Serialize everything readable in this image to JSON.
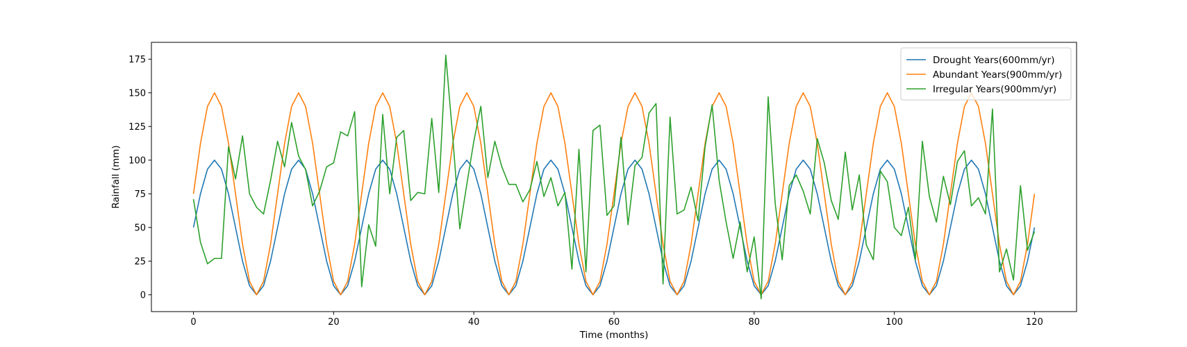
{
  "chart_data": {
    "type": "line",
    "title": "",
    "xlabel": "Time (months)",
    "ylabel": "Rainfall (mm)",
    "xlim": [
      -6,
      126
    ],
    "ylim": [
      -12.5,
      187.5
    ],
    "xticks": [
      0,
      20,
      40,
      60,
      80,
      100,
      120
    ],
    "yticks": [
      0,
      25,
      50,
      75,
      100,
      125,
      150,
      175
    ],
    "grid": false,
    "legend_position": "top-right",
    "x": [
      0,
      1,
      2,
      3,
      4,
      5,
      6,
      7,
      8,
      9,
      10,
      11,
      12,
      13,
      14,
      15,
      16,
      17,
      18,
      19,
      20,
      21,
      22,
      23,
      24,
      25,
      26,
      27,
      28,
      29,
      30,
      31,
      32,
      33,
      34,
      35,
      36,
      37,
      38,
      39,
      40,
      41,
      42,
      43,
      44,
      45,
      46,
      47,
      48,
      49,
      50,
      51,
      52,
      53,
      54,
      55,
      56,
      57,
      58,
      59,
      60,
      61,
      62,
      63,
      64,
      65,
      66,
      67,
      68,
      69,
      70,
      71,
      72,
      73,
      74,
      75,
      76,
      77,
      78,
      79,
      80,
      81,
      82,
      83,
      84,
      85,
      86,
      87,
      88,
      89,
      90,
      91,
      92,
      93,
      94,
      95,
      96,
      97,
      98,
      99,
      100,
      101,
      102,
      103,
      104,
      105,
      106,
      107,
      108,
      109,
      110,
      111,
      112,
      113,
      114,
      115,
      116,
      117,
      118,
      119,
      120
    ],
    "series": [
      {
        "name": "Drought Years(600mm/yr)",
        "color": "#1f77b4",
        "values": [
          50,
          75,
          93.3,
          100,
          93.3,
          75,
          50,
          25,
          6.7,
          0,
          6.7,
          25,
          50,
          75,
          93.3,
          100,
          93.3,
          75,
          50,
          25,
          6.7,
          0,
          6.7,
          25,
          50,
          75,
          93.3,
          100,
          93.3,
          75,
          50,
          25,
          6.7,
          0,
          6.7,
          25,
          50,
          75,
          93.3,
          100,
          93.3,
          75,
          50,
          25,
          6.7,
          0,
          6.7,
          25,
          50,
          75,
          93.3,
          100,
          93.3,
          75,
          50,
          25,
          6.7,
          0,
          6.7,
          25,
          50,
          75,
          93.3,
          100,
          93.3,
          75,
          50,
          25,
          6.7,
          0,
          6.7,
          25,
          50,
          75,
          93.3,
          100,
          93.3,
          75,
          50,
          25,
          6.7,
          0,
          6.7,
          25,
          50,
          75,
          93.3,
          100,
          93.3,
          75,
          50,
          25,
          6.7,
          0,
          6.7,
          25,
          50,
          75,
          93.3,
          100,
          93.3,
          75,
          50,
          25,
          6.7,
          0,
          6.7,
          25,
          50,
          75,
          93.3,
          100,
          93.3,
          75,
          50,
          25,
          6.7,
          0,
          6.7,
          25,
          50
        ]
      },
      {
        "name": "Abundant Years(900mm/yr)",
        "color": "#ff7f0e",
        "values": [
          75,
          112.5,
          139.9,
          150,
          139.9,
          112.5,
          75,
          37.5,
          10,
          0,
          10,
          37.5,
          75,
          112.5,
          139.9,
          150,
          139.9,
          112.5,
          75,
          37.5,
          10,
          0,
          10,
          37.5,
          75,
          112.5,
          139.9,
          150,
          139.9,
          112.5,
          75,
          37.5,
          10,
          0,
          10,
          37.5,
          75,
          112.5,
          139.9,
          150,
          139.9,
          112.5,
          75,
          37.5,
          10,
          0,
          10,
          37.5,
          75,
          112.5,
          139.9,
          150,
          139.9,
          112.5,
          75,
          37.5,
          10,
          0,
          10,
          37.5,
          75,
          112.5,
          139.9,
          150,
          139.9,
          112.5,
          75,
          37.5,
          10,
          0,
          10,
          37.5,
          75,
          112.5,
          139.9,
          150,
          139.9,
          112.5,
          75,
          37.5,
          10,
          0,
          10,
          37.5,
          75,
          112.5,
          139.9,
          150,
          139.9,
          112.5,
          75,
          37.5,
          10,
          0,
          10,
          37.5,
          75,
          112.5,
          139.9,
          150,
          139.9,
          112.5,
          75,
          37.5,
          10,
          0,
          10,
          37.5,
          75,
          112.5,
          139.9,
          150,
          139.9,
          112.5,
          75,
          37.5,
          10,
          0,
          10,
          37.5,
          75
        ]
      },
      {
        "name": "Irregular Years(900mm/yr)",
        "color": "#2ca02c",
        "values": [
          71,
          39,
          23,
          27,
          27,
          110,
          86,
          118,
          75,
          65,
          60,
          85,
          114,
          95,
          128,
          103,
          93,
          66,
          77,
          95,
          98,
          121,
          118,
          136,
          6,
          52,
          36,
          134,
          75,
          117,
          122,
          70,
          76,
          75,
          131,
          76,
          178,
          117,
          49,
          82,
          114,
          140,
          87,
          114,
          95,
          82,
          82,
          69,
          78,
          99,
          73,
          87,
          66,
          76,
          19,
          108,
          17,
          122,
          126,
          59,
          66,
          117,
          52,
          96,
          102,
          135,
          142,
          8,
          132,
          60,
          63,
          80,
          55,
          110,
          141,
          85,
          54,
          27,
          54,
          17,
          43,
          -3,
          147,
          68,
          26,
          81,
          89,
          77,
          60,
          116,
          98,
          70,
          56,
          106,
          63,
          89,
          37,
          26,
          92,
          84,
          50,
          44,
          65,
          26,
          114,
          73,
          54,
          88,
          67,
          99,
          107,
          66,
          72,
          60,
          138,
          17,
          34,
          11,
          81,
          33,
          47
        ]
      }
    ]
  }
}
